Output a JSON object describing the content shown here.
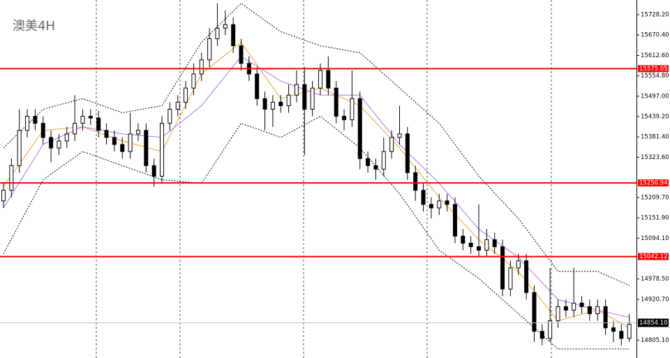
{
  "chart_data": {
    "type": "candlestick",
    "title": "澳美4H",
    "ylim": [
      14754.3,
      15769.8
    ],
    "yticks": [
      {
        "value": 15728.2,
        "label": "15728.20"
      },
      {
        "value": 15670.4,
        "label": "15670.40"
      },
      {
        "value": 15612.6,
        "label": "15612.60"
      },
      {
        "value": 15554.8,
        "label": "15554.80"
      },
      {
        "value": 15497.0,
        "label": "15497.00"
      },
      {
        "value": 15439.2,
        "label": "15439.20"
      },
      {
        "value": 15381.4,
        "label": "15381.40"
      },
      {
        "value": 15323.6,
        "label": "15323.60"
      },
      {
        "value": 15209.7,
        "label": "15209.70"
      },
      {
        "value": 15151.9,
        "label": "15151.90"
      },
      {
        "value": 15094.1,
        "label": "15094.10"
      },
      {
        "value": 14978.5,
        "label": "14978.50"
      },
      {
        "value": 14920.7,
        "label": "14920.70"
      },
      {
        "value": 14805.1,
        "label": "14805.10"
      }
    ],
    "open": [
      15200,
      15230,
      15300,
      15400,
      15440,
      15420,
      15380,
      15350,
      15370,
      15390,
      15420,
      15440,
      15435,
      15400,
      15380,
      15360,
      15340,
      15390,
      15400,
      15300,
      15270,
      15420,
      15460,
      15480,
      15520,
      15560,
      15600,
      15660,
      15690,
      15700,
      15640,
      15590,
      15560,
      15490,
      15460,
      15480,
      15470,
      15500,
      15530,
      15460,
      15520,
      15570,
      15520,
      15440,
      15430,
      15490,
      15320,
      15300,
      15290,
      15340,
      15380,
      15390,
      15280,
      15230,
      15190,
      15180,
      15200,
      15190,
      15100,
      15080,
      15070,
      15060,
      15090,
      15070,
      14950,
      15010,
      15030,
      14940,
      14830,
      14810,
      14860,
      14900,
      14890,
      14910,
      14900,
      14880,
      14900,
      14840,
      14830,
      14810
    ],
    "high": [
      15250,
      15320,
      15460,
      15460,
      15460,
      15440,
      15400,
      15390,
      15410,
      15500,
      15460,
      15460,
      15455,
      15420,
      15400,
      15380,
      15450,
      15420,
      15420,
      15320,
      15440,
      15480,
      15500,
      15540,
      15590,
      15620,
      15690,
      15760,
      15740,
      15720,
      15660,
      15610,
      15580,
      15510,
      15500,
      15500,
      15530,
      15570,
      15580,
      15540,
      15590,
      15610,
      15540,
      15460,
      15570,
      15510,
      15340,
      15320,
      15380,
      15400,
      15470,
      15410,
      15300,
      15250,
      15210,
      15220,
      15220,
      15210,
      15120,
      15100,
      15190,
      15120,
      15110,
      15090,
      15030,
      15050,
      15050,
      14960,
      14850,
      15010,
      14920,
      14920,
      15010,
      14930,
      14920,
      14920,
      14920,
      14860,
      14850,
      14880
    ],
    "low": [
      15180,
      15210,
      15280,
      15380,
      15400,
      15360,
      15310,
      15330,
      15350,
      15370,
      15400,
      15415,
      15380,
      15360,
      15340,
      15320,
      15320,
      15370,
      15280,
      15240,
      15250,
      15400,
      15440,
      15460,
      15500,
      15540,
      15580,
      15640,
      15670,
      15620,
      15570,
      15540,
      15470,
      15400,
      15410,
      15450,
      15450,
      15480,
      15330,
      15440,
      15500,
      15500,
      15420,
      15400,
      15410,
      15290,
      15280,
      15260,
      15270,
      15320,
      15360,
      15260,
      15200,
      15170,
      15150,
      15160,
      15170,
      15080,
      15060,
      15050,
      15040,
      15040,
      15050,
      14930,
      14930,
      14990,
      14920,
      14800,
      14790,
      14800,
      14840,
      14870,
      14870,
      14880,
      14860,
      14860,
      14820,
      14800,
      14790,
      14800
    ],
    "close": [
      15230,
      15300,
      15400,
      15440,
      15420,
      15380,
      15350,
      15370,
      15390,
      15420,
      15440,
      15435,
      15400,
      15380,
      15360,
      15340,
      15390,
      15400,
      15300,
      15270,
      15420,
      15460,
      15480,
      15520,
      15560,
      15600,
      15660,
      15690,
      15700,
      15640,
      15590,
      15560,
      15490,
      15460,
      15480,
      15470,
      15500,
      15530,
      15460,
      15520,
      15570,
      15520,
      15440,
      15430,
      15490,
      15320,
      15300,
      15290,
      15340,
      15380,
      15390,
      15280,
      15230,
      15190,
      15180,
      15200,
      15190,
      15100,
      15080,
      15070,
      15060,
      15090,
      15070,
      14950,
      15010,
      15030,
      14940,
      14830,
      14810,
      14860,
      14900,
      14890,
      14910,
      14900,
      14880,
      14900,
      14840,
      14830,
      14810,
      14850
    ],
    "indicator_x": [
      0,
      5,
      10,
      15,
      20,
      25,
      30,
      35,
      40,
      45,
      50,
      55,
      60,
      65,
      70,
      75,
      79
    ],
    "indicators": [
      {
        "color": "#f0a030",
        "style": "solid",
        "values": [
          15240,
          15400,
          15410,
          15370,
          15340,
          15560,
          15650,
          15490,
          15520,
          15470,
          15350,
          15210,
          15090,
          15000,
          14860,
          14890,
          14840
        ]
      },
      {
        "color": "#b070e0",
        "style": "solid",
        "values": [
          15180,
          15360,
          15410,
          15390,
          15380,
          15470,
          15610,
          15540,
          15500,
          15500,
          15360,
          15250,
          15120,
          15040,
          14920,
          14890,
          14870
        ]
      },
      {
        "color": "#000000",
        "style": "dotted",
        "values": [
          15350,
          15460,
          15490,
          15450,
          15470,
          15650,
          15760,
          15680,
          15640,
          15620,
          15520,
          15420,
          15270,
          15150,
          15000,
          15000,
          14960
        ]
      },
      {
        "color": "#000000",
        "style": "dotted",
        "values": [
          15050,
          15260,
          15340,
          15300,
          15260,
          15250,
          15420,
          15380,
          15440,
          15350,
          15220,
          15060,
          14980,
          14880,
          14780,
          14780,
          14780
        ]
      }
    ],
    "levels": [
      15575.05,
      15250.94,
      15042.12
    ],
    "level_color": "#ff0000",
    "current_price": {
      "value": 14854.1,
      "label": "14854.10"
    },
    "current_color": "#c0c0c0"
  }
}
